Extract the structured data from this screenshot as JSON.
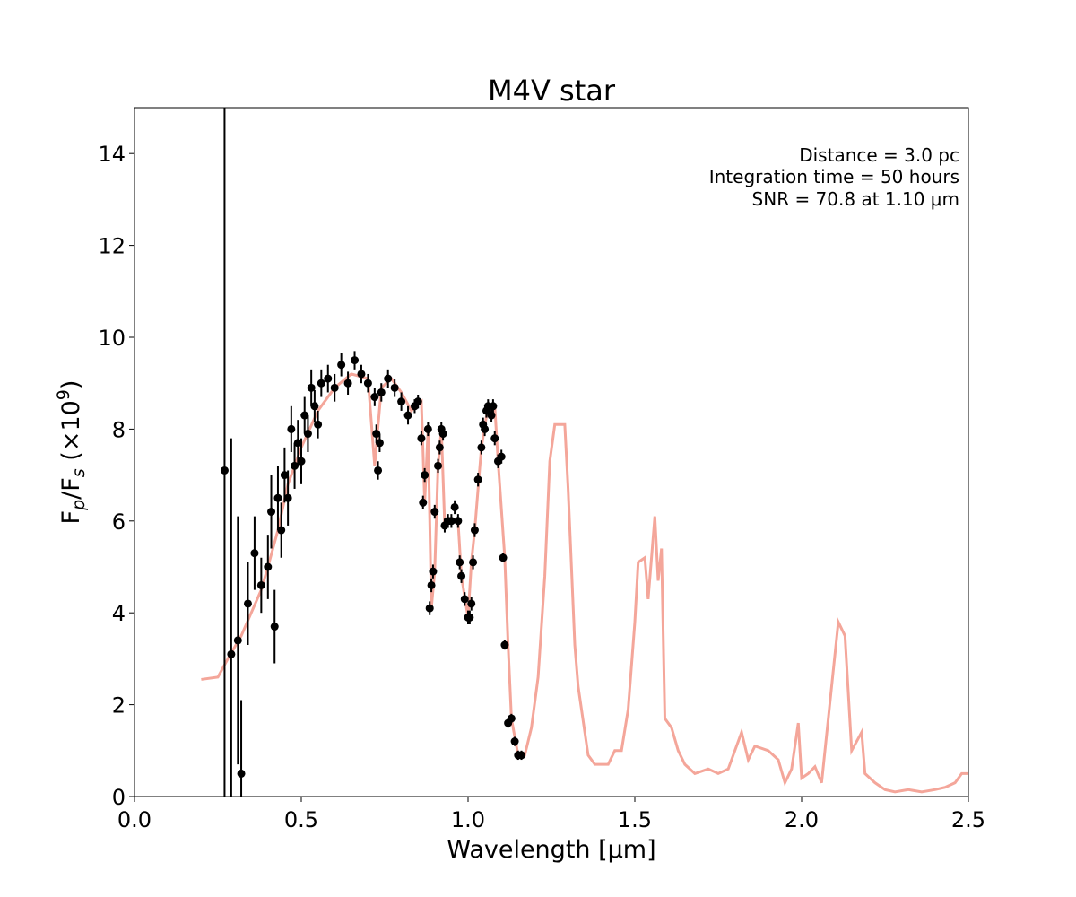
{
  "chart_data": {
    "type": "spectrum",
    "title": "M4V star",
    "xlabel": "Wavelength [μm]",
    "ylabel": [
      "F",
      "p",
      "/F",
      "s",
      " (×10",
      "9",
      ")"
    ],
    "annotations": [
      "Distance = 3.0 pc",
      "Integration time = 50 hours",
      "SNR = 70.8 at 1.10 μm"
    ],
    "xlim": [
      0,
      2.5
    ],
    "ylim": [
      0,
      15
    ],
    "xticks": [
      {
        "value": 0,
        "label": "0.0"
      },
      {
        "value": 0.5,
        "label": "0.5"
      },
      {
        "value": 1,
        "label": "1.0"
      },
      {
        "value": 1.5,
        "label": "1.5"
      },
      {
        "value": 2,
        "label": "2.0"
      },
      {
        "value": 2.5,
        "label": "2.5"
      }
    ],
    "yticks": [
      0,
      2,
      4,
      6,
      8,
      10,
      12,
      14
    ],
    "series": [
      {
        "color": "#f4a69a",
        "x": [
          0.2,
          0.25,
          0.28,
          0.32,
          0.35,
          0.38,
          0.4,
          0.43,
          0.46,
          0.5,
          0.55,
          0.6,
          0.65,
          0.7,
          0.72,
          0.74,
          0.77,
          0.8,
          0.83,
          0.86,
          0.87,
          0.88,
          0.89,
          0.9,
          0.91,
          0.92,
          0.93,
          0.95,
          0.97,
          0.98,
          1.0,
          1.01,
          1.02,
          1.04,
          1.06,
          1.08,
          1.09,
          1.11,
          1.12,
          1.13,
          1.15,
          1.17,
          1.19,
          1.21,
          1.23,
          1.245,
          1.26,
          1.29,
          1.3,
          1.32,
          1.33,
          1.36,
          1.38,
          1.42,
          1.44,
          1.46,
          1.48,
          1.5,
          1.51,
          1.53,
          1.54,
          1.56,
          1.57,
          1.58,
          1.59,
          1.61,
          1.63,
          1.65,
          1.68,
          1.72,
          1.75,
          1.78,
          1.8,
          1.82,
          1.84,
          1.86,
          1.9,
          1.93,
          1.95,
          1.97,
          1.99,
          2.0,
          2.02,
          2.04,
          2.06,
          2.09,
          2.11,
          2.13,
          2.15,
          2.18,
          2.19,
          2.22,
          2.25,
          2.28,
          2.32,
          2.36,
          2.4,
          2.43,
          2.46,
          2.48,
          2.5
        ],
        "values": [
          2.55,
          2.6,
          3.0,
          3.5,
          4.0,
          4.5,
          5.0,
          5.8,
          6.8,
          7.6,
          8.4,
          8.9,
          9.2,
          9.1,
          7.2,
          8.9,
          9.1,
          8.8,
          8.4,
          8.6,
          6.4,
          8.0,
          4.1,
          4.9,
          7.2,
          8.0,
          5.9,
          6.0,
          6.0,
          4.8,
          3.9,
          5.1,
          5.8,
          7.6,
          8.5,
          8.5,
          7.3,
          5.2,
          3.3,
          1.7,
          0.9,
          0.9,
          1.5,
          2.6,
          4.8,
          7.3,
          8.1,
          8.1,
          6.7,
          3.3,
          2.4,
          0.9,
          0.7,
          0.7,
          1.0,
          1.0,
          1.9,
          3.8,
          5.1,
          5.2,
          4.3,
          6.1,
          4.7,
          5.4,
          1.7,
          1.5,
          1.0,
          0.7,
          0.5,
          0.6,
          0.5,
          0.6,
          1.0,
          1.4,
          0.8,
          1.1,
          1.0,
          0.8,
          0.3,
          0.6,
          1.6,
          0.4,
          0.5,
          0.65,
          0.3,
          2.4,
          3.8,
          3.5,
          1.0,
          1.4,
          0.5,
          0.3,
          0.15,
          0.1,
          0.15,
          0.1,
          0.15,
          0.2,
          0.3,
          0.5,
          0.5
        ]
      },
      {
        "color": "#000000",
        "x": [
          0.27,
          0.29,
          0.31,
          0.32,
          0.34,
          0.36,
          0.38,
          0.4,
          0.41,
          0.42,
          0.43,
          0.44,
          0.45,
          0.46,
          0.47,
          0.48,
          0.49,
          0.5,
          0.51,
          0.52,
          0.53,
          0.54,
          0.55,
          0.56,
          0.58,
          0.6,
          0.62,
          0.64,
          0.66,
          0.68,
          0.7,
          0.72,
          0.725,
          0.73,
          0.735,
          0.74,
          0.76,
          0.78,
          0.8,
          0.82,
          0.84,
          0.85,
          0.86,
          0.865,
          0.87,
          0.88,
          0.885,
          0.89,
          0.895,
          0.9,
          0.91,
          0.915,
          0.92,
          0.925,
          0.93,
          0.94,
          0.95,
          0.96,
          0.97,
          0.975,
          0.98,
          0.99,
          1.0,
          1.005,
          1.01,
          1.015,
          1.02,
          1.03,
          1.04,
          1.045,
          1.05,
          1.055,
          1.06,
          1.07,
          1.075,
          1.08,
          1.09,
          1.1,
          1.105,
          1.11,
          1.12,
          1.13,
          1.14,
          1.15,
          1.16
        ],
        "values": [
          7.1,
          3.1,
          3.4,
          0.5,
          4.2,
          5.3,
          4.6,
          5.0,
          6.2,
          3.7,
          6.5,
          5.8,
          7.0,
          6.5,
          8.0,
          7.2,
          7.7,
          7.3,
          8.3,
          7.9,
          8.9,
          8.5,
          8.1,
          9.0,
          9.1,
          8.9,
          9.4,
          9.0,
          9.5,
          9.2,
          9.0,
          8.7,
          7.9,
          7.1,
          7.7,
          8.8,
          9.1,
          8.9,
          8.6,
          8.3,
          8.5,
          8.6,
          7.8,
          6.4,
          7.0,
          8.0,
          4.1,
          4.6,
          4.9,
          6.2,
          7.2,
          7.6,
          8.0,
          7.9,
          5.9,
          6.0,
          6.0,
          6.3,
          6.0,
          5.1,
          4.8,
          4.3,
          3.9,
          3.9,
          4.2,
          5.1,
          5.8,
          6.9,
          7.6,
          8.1,
          8.0,
          8.4,
          8.5,
          8.3,
          8.5,
          7.8,
          7.3,
          7.4,
          5.2,
          3.3,
          1.6,
          1.7,
          1.2,
          0.9,
          0.9
        ],
        "errors": [
          10,
          4.7,
          2.7,
          1.6,
          0.9,
          0.8,
          0.6,
          0.7,
          0.8,
          0.8,
          0.7,
          0.6,
          0.6,
          0.6,
          0.5,
          0.5,
          0.5,
          0.5,
          0.4,
          0.4,
          0.4,
          0.35,
          0.3,
          0.3,
          0.3,
          0.3,
          0.25,
          0.25,
          0.2,
          0.2,
          0.2,
          0.2,
          0.2,
          0.2,
          0.2,
          0.2,
          0.2,
          0.2,
          0.2,
          0.2,
          0.15,
          0.15,
          0.15,
          0.15,
          0.15,
          0.15,
          0.15,
          0.15,
          0.15,
          0.15,
          0.15,
          0.15,
          0.15,
          0.15,
          0.15,
          0.15,
          0.15,
          0.15,
          0.15,
          0.15,
          0.15,
          0.15,
          0.15,
          0.15,
          0.15,
          0.15,
          0.15,
          0.15,
          0.15,
          0.15,
          0.15,
          0.15,
          0.15,
          0.15,
          0.15,
          0.15,
          0.15,
          0.15,
          0.1,
          0.1,
          0.1,
          0.1,
          0.1,
          0.1,
          0.1
        ]
      }
    ]
  }
}
